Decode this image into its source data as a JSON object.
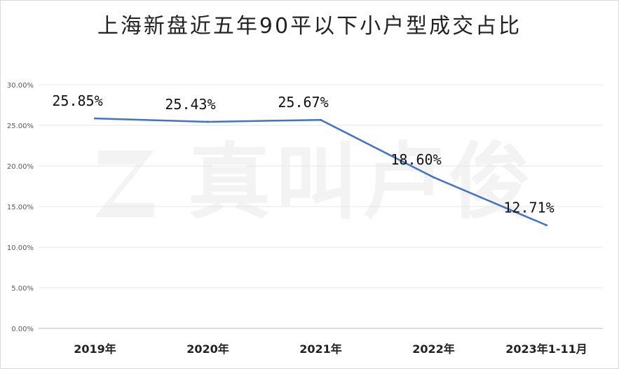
{
  "chart_data": {
    "type": "line",
    "title": "上海新盘近五年90平以下小户型成交占比",
    "categories": [
      "2019年",
      "2020年",
      "2021年",
      "2022年",
      "2023年1-11月"
    ],
    "series": [
      {
        "values": [
          25.85,
          25.43,
          25.67,
          18.6,
          12.71
        ]
      }
    ],
    "data_labels": [
      "25.85%",
      "25.43%",
      "25.67%",
      "18.60%",
      "12.71%"
    ],
    "y_ticks": [
      "0.00%",
      "5.00%",
      "10.00%",
      "15.00%",
      "20.00%",
      "25.00%",
      "30.00%"
    ],
    "ylim": [
      0,
      30
    ],
    "grid": true,
    "line_color": "#4472c4"
  },
  "watermark": {
    "text": "真叫卢俊"
  }
}
